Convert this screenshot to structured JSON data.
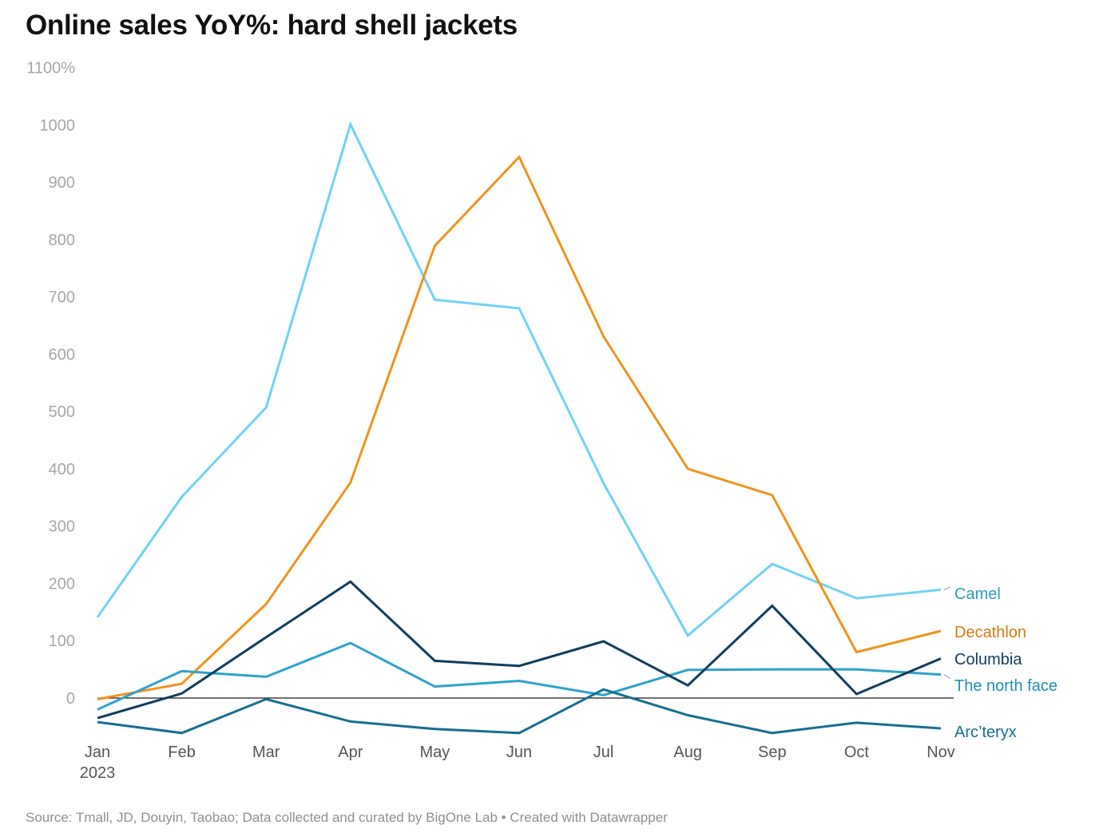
{
  "chart_data": {
    "type": "line",
    "title": "Online sales YoY%: hard shell jackets",
    "source": "Source: Tmall, JD, Douyin, Taobao; Data collected and curated by BigOne Lab • Created with Datawrapper",
    "x": [
      "Jan",
      "Feb",
      "Mar",
      "Apr",
      "May",
      "Jun",
      "Jul",
      "Aug",
      "Sep",
      "Oct",
      "Nov"
    ],
    "x_sublabel": "2023",
    "y_ticks": [
      {
        "value": 0,
        "label": "0"
      },
      {
        "value": 100,
        "label": "100"
      },
      {
        "value": 200,
        "label": "200"
      },
      {
        "value": 300,
        "label": "300"
      },
      {
        "value": 400,
        "label": "400"
      },
      {
        "value": 500,
        "label": "500"
      },
      {
        "value": 600,
        "label": "600"
      },
      {
        "value": 700,
        "label": "700"
      },
      {
        "value": 800,
        "label": "800"
      },
      {
        "value": 900,
        "label": "900"
      },
      {
        "value": 1000,
        "label": "1000"
      },
      {
        "value": 1100,
        "label": "1100%"
      }
    ],
    "ylim": [
      -70,
      1100
    ],
    "grid": false,
    "legend": "direct labels at right end of lines",
    "series": [
      {
        "name": "Camel",
        "color": "#6fd3f2",
        "label_color": "#2b9ec0",
        "values": [
          141,
          351,
          507,
          1001,
          695,
          680,
          375,
          109,
          234,
          174,
          189
        ]
      },
      {
        "name": "Decathlon",
        "color": "#f0931c",
        "label_color": "#d07a0f",
        "values": [
          -2,
          25,
          164,
          376,
          789,
          944,
          631,
          400,
          354,
          80,
          117
        ]
      },
      {
        "name": "Columbia",
        "color": "#0e3d5e",
        "label_color": "#0e3d5e",
        "values": [
          -35,
          8,
          106,
          203,
          65,
          56,
          99,
          22,
          161,
          7,
          69
        ]
      },
      {
        "name": "The north face",
        "color": "#2ba3cc",
        "label_color": "#1f8fb8",
        "values": [
          -20,
          47,
          37,
          96,
          20,
          30,
          5,
          49,
          50,
          50,
          41
        ]
      },
      {
        "name": "Arc’teryx",
        "color": "#146f92",
        "label_color": "#146f92",
        "values": [
          -42,
          -61,
          -2,
          -41,
          -54,
          -61,
          15,
          -30,
          -61,
          -43,
          -53
        ]
      }
    ]
  }
}
